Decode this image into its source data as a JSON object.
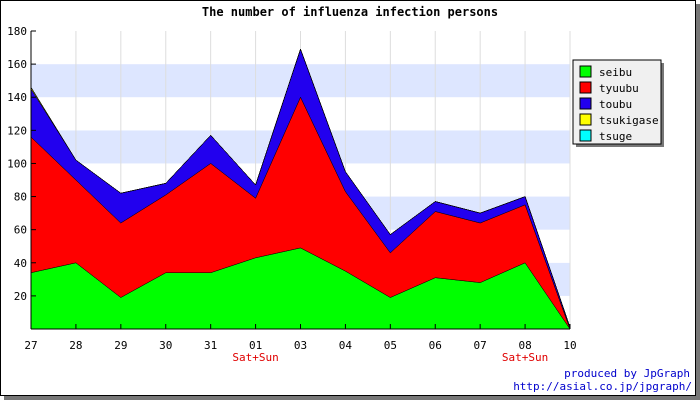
{
  "chart_data": {
    "type": "area",
    "stacked": true,
    "title": "The number of influenza infection persons",
    "categories": [
      "27",
      "28",
      "29",
      "30",
      "31",
      "01",
      "03",
      "04",
      "05",
      "06",
      "07",
      "08",
      "10"
    ],
    "category_sublabels": [
      "",
      "",
      "",
      "",
      "",
      "Sat+Sun",
      "",
      "",
      "",
      "",
      "",
      "Sat+Sun",
      ""
    ],
    "ylim": [
      0,
      180
    ],
    "yticks": [
      20,
      40,
      60,
      80,
      100,
      120,
      140,
      160,
      180
    ],
    "series": [
      {
        "name": "seibu",
        "color": "#00ff00",
        "values": [
          34,
          40,
          19,
          34,
          34,
          43,
          49,
          35,
          19,
          31,
          28,
          40,
          0
        ]
      },
      {
        "name": "tyuubu",
        "color": "#ff0000",
        "values": [
          82,
          50,
          45,
          47,
          66,
          36,
          91,
          48,
          27,
          40,
          36,
          35,
          0
        ]
      },
      {
        "name": "toubu",
        "color": "#2200ee",
        "values": [
          29,
          12,
          18,
          7,
          17,
          8,
          29,
          12,
          11,
          6,
          6,
          5,
          1
        ]
      },
      {
        "name": "tsukigase",
        "color": "#ffff00",
        "values": [
          1,
          0,
          0,
          0,
          0,
          0,
          0,
          0,
          0,
          0,
          0,
          0,
          0
        ]
      },
      {
        "name": "tsuge",
        "color": "#00ffff",
        "values": [
          0,
          0,
          0,
          0,
          0,
          0,
          0,
          0,
          0,
          0,
          0,
          0,
          0
        ]
      }
    ],
    "legend_position": "right",
    "grid": true
  },
  "footer": {
    "line1": "produced by JpGraph",
    "line2": "http://asial.co.jp/jpgraph/"
  }
}
